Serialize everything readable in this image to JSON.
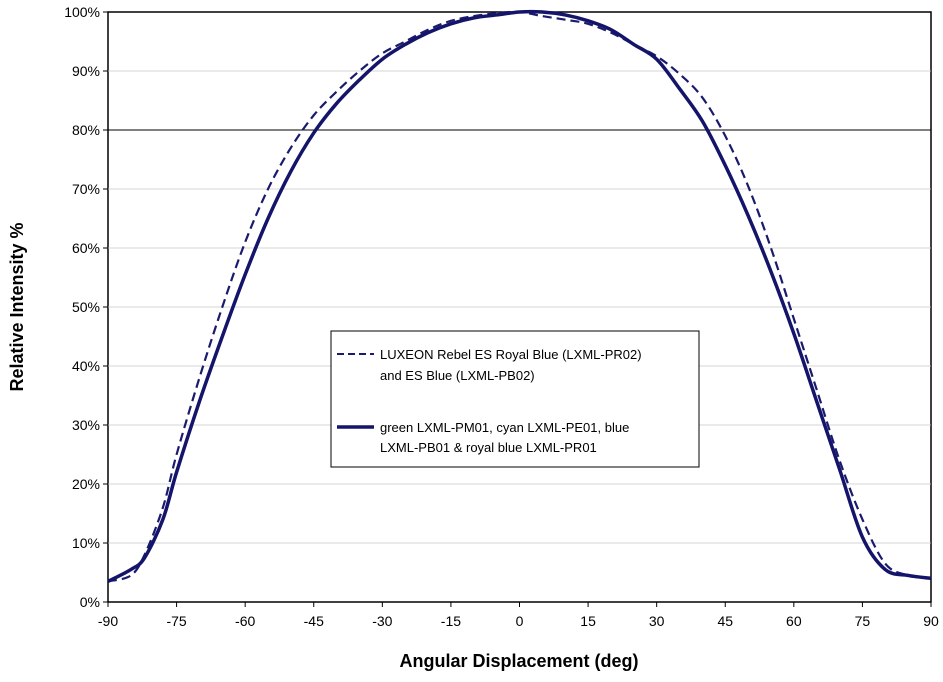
{
  "chart_data": {
    "type": "line",
    "xlabel": "Angular Displacement (deg)",
    "ylabel": "Relative Intensity %",
    "xlim": [
      -90,
      90
    ],
    "ylim": [
      0,
      100
    ],
    "x_ticks": [
      -90,
      -75,
      -60,
      -45,
      -30,
      -15,
      0,
      15,
      30,
      45,
      60,
      75,
      90
    ],
    "y_ticks": [
      0,
      10,
      20,
      30,
      40,
      50,
      60,
      70,
      80,
      90,
      100
    ],
    "y_tick_labels": [
      "0%",
      "10%",
      "20%",
      "30%",
      "40%",
      "50%",
      "60%",
      "70%",
      "80%",
      "90%",
      "100%"
    ],
    "grid": "horizontal",
    "legend_position": "center",
    "series": [
      {
        "name_lines": [
          "LUXEON Rebel ES Royal Blue (LXML-PR02)",
          "and ES Blue (LXML-PB02)"
        ],
        "style": "dashed",
        "color": "#1a1a6e",
        "points": [
          [
            -90,
            3.5
          ],
          [
            -85,
            4.5
          ],
          [
            -82,
            8
          ],
          [
            -78,
            16
          ],
          [
            -75,
            25
          ],
          [
            -70,
            38
          ],
          [
            -65,
            50
          ],
          [
            -60,
            61
          ],
          [
            -55,
            70
          ],
          [
            -50,
            77
          ],
          [
            -45,
            82.5
          ],
          [
            -40,
            86.5
          ],
          [
            -35,
            90
          ],
          [
            -30,
            93
          ],
          [
            -25,
            95
          ],
          [
            -20,
            97
          ],
          [
            -15,
            98.5
          ],
          [
            -10,
            99.3
          ],
          [
            -5,
            99.8
          ],
          [
            0,
            100
          ],
          [
            5,
            99.3
          ],
          [
            10,
            98.7
          ],
          [
            15,
            98
          ],
          [
            20,
            96.5
          ],
          [
            25,
            94.5
          ],
          [
            30,
            92.5
          ],
          [
            35,
            89.5
          ],
          [
            40,
            85.5
          ],
          [
            45,
            79
          ],
          [
            50,
            70.5
          ],
          [
            55,
            60
          ],
          [
            60,
            48
          ],
          [
            65,
            36
          ],
          [
            70,
            24
          ],
          [
            75,
            14
          ],
          [
            80,
            6.5
          ],
          [
            85,
            4.5
          ],
          [
            90,
            4
          ]
        ]
      },
      {
        "name_lines": [
          "green LXML-PM01, cyan LXML-PE01, blue",
          "LXML-PB01 & royal blue LXML-PR01"
        ],
        "style": "solid",
        "color": "#14146b",
        "points": [
          [
            -90,
            3.5
          ],
          [
            -85,
            5.5
          ],
          [
            -82,
            7.5
          ],
          [
            -78,
            14
          ],
          [
            -75,
            22
          ],
          [
            -70,
            34
          ],
          [
            -65,
            45
          ],
          [
            -60,
            55.5
          ],
          [
            -55,
            65
          ],
          [
            -50,
            73
          ],
          [
            -45,
            79.5
          ],
          [
            -40,
            84.5
          ],
          [
            -35,
            88.5
          ],
          [
            -30,
            92
          ],
          [
            -25,
            94.5
          ],
          [
            -20,
            96.5
          ],
          [
            -15,
            98
          ],
          [
            -10,
            99
          ],
          [
            -5,
            99.5
          ],
          [
            0,
            100
          ],
          [
            5,
            100
          ],
          [
            10,
            99.5
          ],
          [
            15,
            98.5
          ],
          [
            20,
            97
          ],
          [
            25,
            94.5
          ],
          [
            30,
            92
          ],
          [
            35,
            87
          ],
          [
            40,
            81.5
          ],
          [
            45,
            74
          ],
          [
            50,
            65.5
          ],
          [
            55,
            56
          ],
          [
            60,
            45.5
          ],
          [
            65,
            34
          ],
          [
            70,
            22.5
          ],
          [
            75,
            11
          ],
          [
            80,
            5.5
          ],
          [
            85,
            4.5
          ],
          [
            90,
            4
          ]
        ]
      }
    ]
  }
}
